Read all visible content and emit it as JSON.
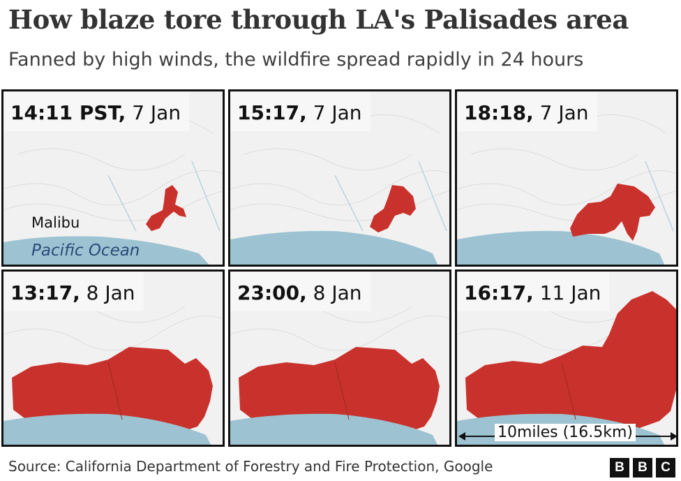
{
  "title": "How blaze tore through LA's Palisades area",
  "subtitle": "Fanned by high winds, the wildfire spread rapidly in 24 hours",
  "panels": [
    {
      "time": "14:11 PST,",
      "date": " 7 Jan",
      "stage": 1
    },
    {
      "time": "15:17,",
      "date": " 7 Jan",
      "stage": 2
    },
    {
      "time": "18:18,",
      "date": " 7 Jan",
      "stage": 3
    },
    {
      "time": "13:17,",
      "date": " 8 Jan",
      "stage": 4
    },
    {
      "time": "23:00,",
      "date": " 8 Jan",
      "stage": 5
    },
    {
      "time": "16:17,",
      "date": " 11 Jan",
      "stage": 6
    }
  ],
  "map_labels": {
    "town": "Malibu",
    "ocean": "Pacific Ocean"
  },
  "scale": "10miles (16.5km)",
  "source": "Source: California Department of Forestry and Fire Protection, Google",
  "logo": [
    "B",
    "B",
    "C"
  ],
  "colors": {
    "fire": "#c9322c",
    "ocean": "#9dc3d2",
    "land": "#f1f1f1"
  }
}
